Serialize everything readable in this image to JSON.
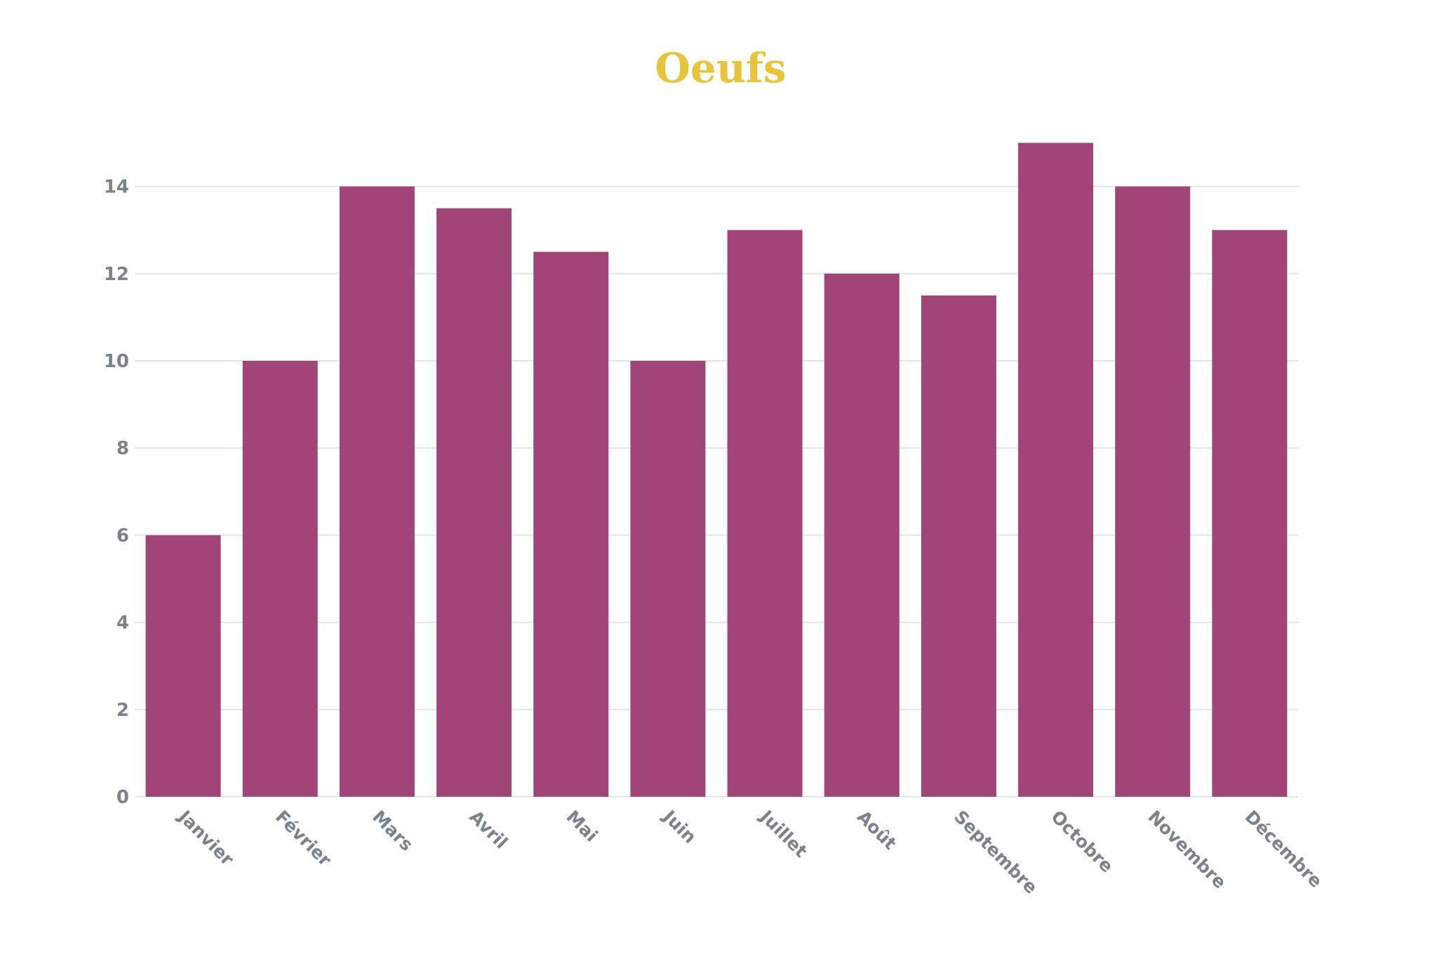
{
  "colors": {
    "title": "#e8c33c",
    "bar": "#a14478",
    "grid": "#dde6ee",
    "axis_text": "#7a838c",
    "background": "#ffffff"
  },
  "chart_data": {
    "type": "bar",
    "title": "Oeufs",
    "xlabel": "",
    "ylabel": "",
    "categories": [
      "Janvier",
      "Février",
      "Mars",
      "Avril",
      "Mai",
      "Juin",
      "Juillet",
      "Août",
      "Septembre",
      "Octobre",
      "Novembre",
      "Décembre"
    ],
    "values": [
      6,
      10,
      14,
      13.5,
      12.5,
      10,
      13,
      12,
      11.5,
      15,
      14,
      13
    ],
    "ylim": [
      0,
      15
    ],
    "yticks": [
      0,
      2,
      4,
      6,
      8,
      10,
      12,
      14
    ],
    "grid": true,
    "legend": "none"
  }
}
